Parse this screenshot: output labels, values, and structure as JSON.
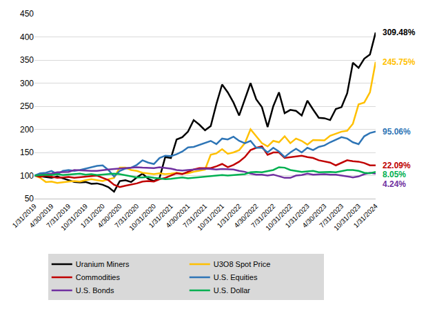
{
  "chart_data": {
    "type": "line",
    "categories": [
      "1/31/2019",
      null,
      null,
      "4/30/2019",
      null,
      null,
      "7/31/2019",
      null,
      null,
      "10/31/2019",
      null,
      null,
      "1/31/2020",
      null,
      null,
      "4/30/2020",
      null,
      null,
      "7/31/2020",
      null,
      null,
      "10/31/2020",
      null,
      null,
      "1/31/2021",
      null,
      null,
      "4/30/2021",
      null,
      null,
      "7/31/2021",
      null,
      null,
      "10/31/2021",
      null,
      null,
      "1/31/2022",
      null,
      null,
      "4/30/2022",
      null,
      null,
      "7/31/2022",
      null,
      null,
      "10/31/2022",
      null,
      null,
      "1/31/2023",
      null,
      null,
      "4/30/2023",
      null,
      null,
      "7/31/2023",
      null,
      null,
      "10/31/2023",
      null,
      null,
      "1/31/2024"
    ],
    "series": [
      {
        "name": "Uranium Miners",
        "color": "#000000",
        "end_label": "309.48%",
        "values": [
          100,
          98,
          97,
          95,
          98,
          94,
          90,
          86,
          85,
          86,
          82,
          83,
          80,
          75,
          65,
          88,
          90,
          86,
          96,
          104,
          93,
          88,
          95,
          140,
          138,
          178,
          183,
          195,
          220,
          210,
          198,
          207,
          255,
          297,
          280,
          258,
          230,
          265,
          300,
          265,
          248,
          205,
          250,
          280,
          235,
          242,
          240,
          230,
          262,
          243,
          225,
          224,
          220,
          244,
          248,
          278,
          344,
          333,
          353,
          362,
          409.48
        ]
      },
      {
        "name": "U3O8 Spot Price",
        "color": "#ffc000",
        "end_label": "245.75%",
        "values": [
          100,
          95,
          86,
          87,
          84,
          86,
          87,
          88,
          87,
          90,
          92,
          90,
          88,
          92,
          95,
          117,
          117,
          112,
          110,
          106,
          104,
          103,
          105,
          103,
          104,
          106,
          104,
          105,
          108,
          110,
          113,
          145,
          148,
          157,
          147,
          150,
          155,
          170,
          200,
          185,
          170,
          163,
          175,
          172,
          185,
          170,
          180,
          175,
          167,
          177,
          176,
          176,
          186,
          190,
          195,
          197,
          212,
          254,
          258,
          280,
          345.75
        ]
      },
      {
        "name": "Commodities",
        "color": "#c00000",
        "end_label": "22.09%",
        "values": [
          100,
          97,
          100,
          98,
          95,
          96,
          97,
          95,
          96,
          97,
          98,
          100,
          95,
          90,
          80,
          75,
          78,
          80,
          83,
          87,
          88,
          87,
          92,
          95,
          100,
          105,
          103,
          108,
          113,
          116,
          116,
          116,
          120,
          125,
          118,
          123,
          130,
          140,
          155,
          160,
          163,
          145,
          150,
          150,
          138,
          140,
          142,
          143,
          140,
          138,
          133,
          130,
          128,
          122,
          127,
          133,
          131,
          130,
          127,
          122,
          122.09
        ]
      },
      {
        "name": "U.S. Equities",
        "color": "#2e75b6",
        "end_label": "95.06%",
        "values": [
          100,
          105,
          106,
          110,
          103,
          110,
          112,
          110,
          112,
          115,
          118,
          121,
          122,
          112,
          98,
          110,
          115,
          117,
          123,
          133,
          128,
          125,
          138,
          143,
          142,
          146,
          152,
          161,
          162,
          166,
          170,
          175,
          168,
          180,
          178,
          184,
          175,
          170,
          175,
          160,
          160,
          150,
          160,
          152,
          140,
          150,
          158,
          150,
          160,
          155,
          162,
          165,
          172,
          178,
          183,
          180,
          172,
          168,
          185,
          192,
          195.06
        ]
      },
      {
        "name": "U.S. Bonds",
        "color": "#7030a0",
        "end_label": "4.24%",
        "values": [
          100,
          101,
          103,
          104,
          107,
          108,
          108,
          112,
          111,
          111,
          110,
          110,
          112,
          113,
          114,
          115,
          115,
          116,
          118,
          117,
          117,
          116,
          118,
          117,
          115,
          112,
          111,
          112,
          113,
          114,
          115,
          114,
          113,
          114,
          114,
          113,
          110,
          108,
          104,
          102,
          102,
          100,
          102,
          98,
          95,
          95,
          100,
          101,
          104,
          102,
          103,
          103,
          102,
          102,
          100,
          98,
          96,
          98,
          103,
          106,
          104.24
        ]
      },
      {
        "name": "U.S. Dollar",
        "color": "#00b050",
        "end_label": "8.05%",
        "values": [
          100,
          101,
          102,
          101,
          103,
          101,
          102,
          104,
          104,
          102,
          103,
          101,
          102,
          104,
          104,
          103,
          101,
          98,
          96,
          96,
          97,
          95,
          93,
          92,
          93,
          94,
          96,
          94,
          95,
          97,
          97,
          98,
          99,
          101,
          100,
          101,
          101,
          103,
          107,
          108,
          107,
          110,
          112,
          118,
          117,
          112,
          110,
          108,
          109,
          110,
          107,
          108,
          108,
          107,
          109,
          112,
          112,
          110,
          106,
          105,
          108.05
        ]
      }
    ],
    "ylim": [
      50,
      450
    ],
    "yticks": [
      50,
      100,
      150,
      200,
      250,
      300,
      350,
      400,
      450
    ],
    "grid": true,
    "legend": "bottom"
  }
}
